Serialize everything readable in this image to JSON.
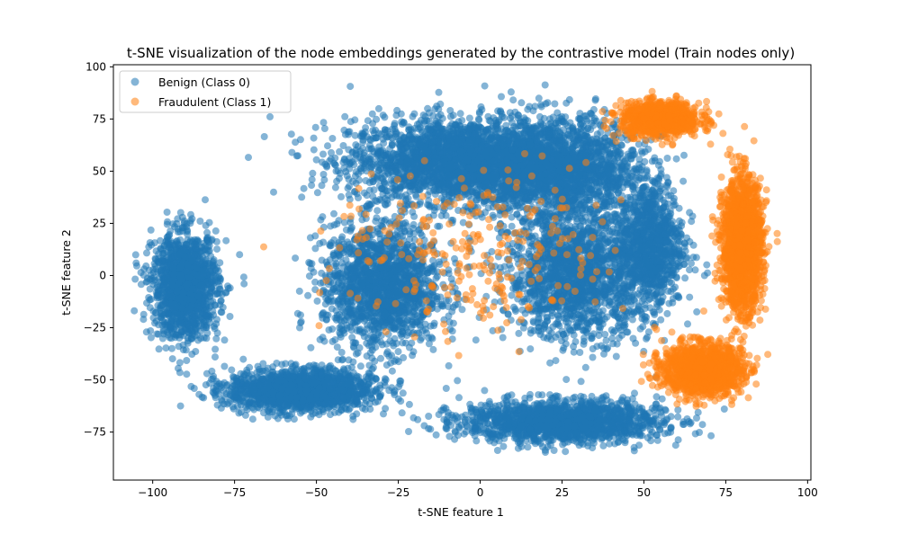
{
  "chart_data": {
    "type": "scatter",
    "title": "t-SNE visualization of the node embeddings generated by the contrastive model (Train nodes only)",
    "xlabel": "t-SNE feature 1",
    "ylabel": "t-SNE feature 2",
    "xlim": [
      -112,
      101
    ],
    "ylim": [
      -98,
      101
    ],
    "xticks": [
      -100,
      -75,
      -50,
      -25,
      0,
      25,
      50,
      75,
      100
    ],
    "yticks": [
      -75,
      -50,
      -25,
      0,
      25,
      50,
      75,
      100
    ],
    "grid": false,
    "legend_position": "top-left",
    "point_alpha": 0.55,
    "series": [
      {
        "name": "Benign (Class 0)",
        "color": "#1f77b4",
        "clusters": [
          {
            "region": "top arc",
            "center": [
              -5,
              55
            ],
            "spread": [
              35,
              20
            ],
            "count": 2600
          },
          {
            "region": "top right arc",
            "center": [
              25,
              50
            ],
            "spread": [
              25,
              25
            ],
            "count": 1600
          },
          {
            "region": "left lobe",
            "center": [
              -90,
              -5
            ],
            "spread": [
              10,
              25
            ],
            "count": 1400
          },
          {
            "region": "lower left arc",
            "center": [
              -55,
              -55
            ],
            "spread": [
              22,
              10
            ],
            "count": 1600
          },
          {
            "region": "center left",
            "center": [
              -30,
              -5
            ],
            "spread": [
              18,
              30
            ],
            "count": 1600
          },
          {
            "region": "center right",
            "center": [
              30,
              0
            ],
            "spread": [
              22,
              30
            ],
            "count": 1600
          },
          {
            "region": "bottom center",
            "center": [
              25,
              -70
            ],
            "spread": [
              30,
              10
            ],
            "count": 1600
          },
          {
            "region": "right edge",
            "center": [
              52,
              15
            ],
            "spread": [
              10,
              30
            ],
            "count": 900
          }
        ]
      },
      {
        "name": "Fraudulent (Class 1)",
        "color": "#ff7f0e",
        "clusters": [
          {
            "region": "right crescent top",
            "center": [
              55,
              75
            ],
            "spread": [
              12,
              8
            ],
            "count": 900
          },
          {
            "region": "right crescent middle",
            "center": [
              80,
              15
            ],
            "spread": [
              6,
              30
            ],
            "count": 1800
          },
          {
            "region": "right crescent bottom",
            "center": [
              68,
              -45
            ],
            "spread": [
              12,
              12
            ],
            "count": 1300
          },
          {
            "region": "scattered",
            "center": [
              0,
              10
            ],
            "spread": [
              45,
              40
            ],
            "count": 260
          }
        ]
      }
    ]
  }
}
